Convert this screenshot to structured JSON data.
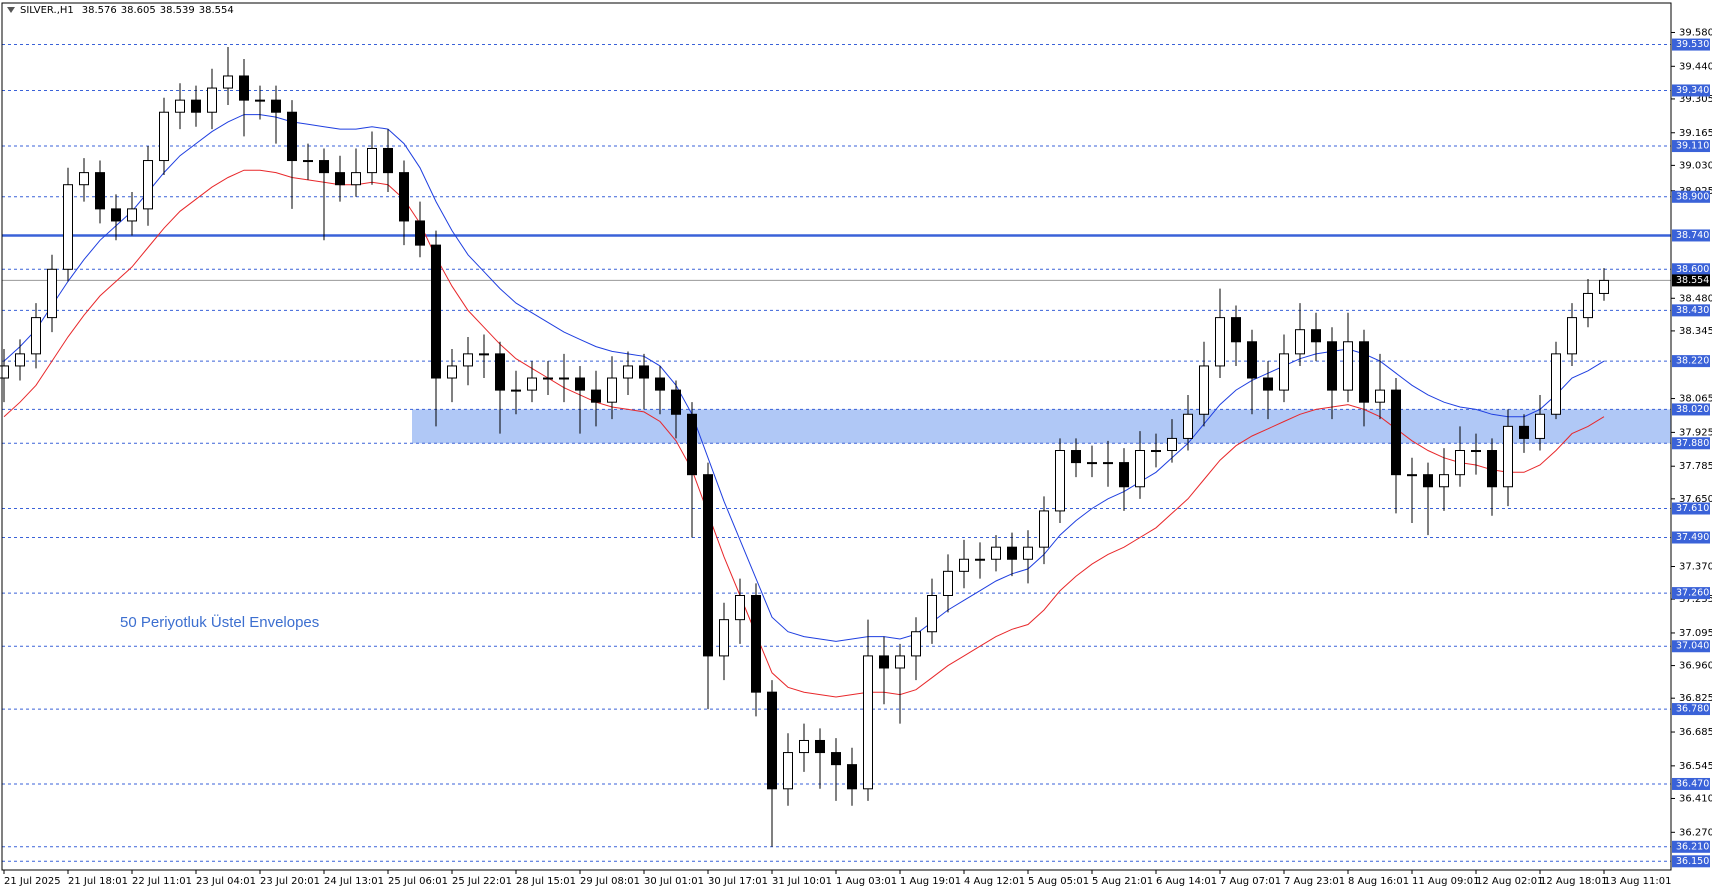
{
  "chart_data": {
    "type": "candlestick",
    "header": {
      "symbol": "SILVER.,H1",
      "ohlc": [
        38.576,
        38.605,
        38.539,
        38.554
      ]
    },
    "annotation": "50 Periyotluk Üstel Envelopes",
    "categories": [
      "21 Jul 2025",
      null,
      null,
      null,
      "21 Jul 18:01",
      null,
      null,
      null,
      "22 Jul 11:01",
      null,
      null,
      null,
      "23 Jul 04:01",
      null,
      null,
      null,
      "23 Jul 20:01",
      null,
      null,
      null,
      "24 Jul 13:01",
      null,
      null,
      null,
      "25 Jul 06:01",
      null,
      null,
      null,
      "25 Jul 22:01",
      null,
      null,
      null,
      "28 Jul 15:01",
      null,
      null,
      null,
      "29 Jul 08:01",
      null,
      null,
      null,
      "30 Jul 01:01",
      null,
      null,
      null,
      "30 Jul 17:01",
      null,
      null,
      null,
      "31 Jul 10:01",
      null,
      null,
      null,
      "1 Aug 03:01",
      null,
      null,
      null,
      "1 Aug 19:01",
      null,
      null,
      null,
      "4 Aug 12:01",
      null,
      null,
      null,
      "5 Aug 05:01",
      null,
      null,
      null,
      "5 Aug 21:01",
      null,
      null,
      null,
      "6 Aug 14:01",
      null,
      null,
      null,
      "7 Aug 07:01",
      null,
      null,
      null,
      "7 Aug 23:01",
      null,
      null,
      null,
      "8 Aug 16:01",
      null,
      null,
      null,
      "11 Aug 09:01",
      null,
      null,
      null,
      "12 Aug 02:01",
      null,
      null,
      null,
      "12 Aug 18:01",
      null,
      null,
      null,
      "13 Aug 11:01"
    ],
    "open": [
      38.15,
      38.2,
      38.25,
      38.4,
      38.6,
      38.95,
      39.0,
      38.85,
      38.8,
      38.85,
      39.05,
      39.25,
      39.3,
      39.25,
      39.35,
      39.4,
      39.3,
      39.3,
      39.25,
      39.05,
      39.05,
      39.0,
      38.95,
      39.0,
      39.1,
      39.0,
      38.8,
      38.7,
      38.15,
      38.2,
      38.25,
      38.25,
      38.1,
      38.1,
      38.15,
      38.15,
      38.15,
      38.1,
      38.05,
      38.15,
      38.2,
      38.15,
      38.1,
      38.0,
      37.75,
      37.0,
      37.15,
      37.25,
      36.85,
      36.45,
      36.6,
      36.65,
      36.6,
      36.55,
      36.45,
      37.0,
      36.95,
      37.0,
      37.1,
      37.25,
      37.35,
      37.4,
      37.4,
      37.45,
      37.4,
      37.45,
      37.6,
      37.85,
      37.8,
      37.8,
      37.8,
      37.7,
      37.85,
      37.85,
      37.9,
      38.0,
      38.2,
      38.4,
      38.3,
      38.15,
      38.1,
      38.25,
      38.35,
      38.3,
      38.1,
      38.3,
      38.05,
      38.1,
      37.75,
      37.75,
      37.7,
      37.75,
      37.85,
      37.85,
      37.7,
      37.95,
      37.9,
      38.0,
      38.25,
      38.4,
      38.5
    ],
    "high": [
      38.27,
      38.31,
      38.46,
      38.66,
      39.02,
      39.06,
      39.05,
      38.91,
      38.92,
      39.11,
      39.31,
      39.37,
      39.36,
      39.43,
      39.52,
      39.47,
      39.36,
      39.36,
      39.3,
      39.12,
      39.1,
      39.07,
      39.1,
      39.17,
      39.18,
      39.05,
      38.88,
      38.76,
      38.27,
      38.32,
      38.33,
      38.3,
      38.18,
      38.22,
      38.22,
      38.25,
      38.2,
      38.18,
      38.24,
      38.26,
      38.25,
      38.2,
      38.14,
      38.05,
      37.8,
      37.22,
      37.32,
      37.3,
      36.9,
      36.68,
      36.72,
      36.7,
      36.66,
      36.62,
      37.15,
      37.08,
      37.05,
      37.16,
      37.32,
      37.42,
      37.48,
      37.47,
      37.5,
      37.51,
      37.52,
      37.66,
      37.9,
      37.9,
      37.87,
      37.89,
      37.86,
      37.93,
      37.92,
      37.98,
      38.08,
      38.3,
      38.52,
      38.45,
      38.35,
      38.22,
      38.33,
      38.46,
      38.42,
      38.36,
      38.42,
      38.35,
      38.25,
      38.15,
      37.82,
      37.8,
      37.86,
      37.95,
      37.92,
      37.9,
      38.02,
      38.0,
      38.08,
      38.3,
      38.46,
      38.56,
      38.605
    ],
    "low": [
      38.05,
      38.14,
      38.19,
      38.34,
      38.55,
      38.88,
      38.79,
      38.72,
      38.74,
      38.78,
      38.99,
      39.18,
      39.19,
      39.18,
      39.28,
      39.15,
      39.22,
      39.12,
      38.85,
      38.97,
      38.72,
      38.88,
      38.9,
      38.95,
      38.92,
      38.7,
      38.65,
      37.95,
      38.05,
      38.12,
      38.15,
      37.92,
      38.0,
      38.05,
      38.08,
      38.05,
      37.92,
      37.95,
      37.98,
      38.08,
      38.02,
      38.0,
      37.9,
      37.49,
      36.78,
      36.9,
      37.05,
      36.75,
      36.21,
      36.38,
      36.52,
      36.45,
      36.4,
      36.38,
      36.4,
      36.8,
      36.72,
      36.9,
      37.05,
      37.18,
      37.28,
      37.32,
      37.35,
      37.33,
      37.3,
      37.38,
      37.55,
      37.74,
      37.74,
      37.7,
      37.6,
      37.65,
      37.78,
      37.8,
      37.85,
      37.95,
      38.15,
      38.2,
      38.0,
      37.98,
      38.05,
      38.2,
      38.22,
      37.98,
      38.05,
      37.95,
      37.98,
      37.59,
      37.55,
      37.5,
      37.6,
      37.7,
      37.75,
      37.58,
      37.62,
      37.84,
      37.85,
      37.98,
      38.2,
      38.36,
      38.47
    ],
    "close": [
      38.2,
      38.25,
      38.4,
      38.6,
      38.95,
      39.0,
      38.85,
      38.8,
      38.85,
      39.05,
      39.25,
      39.3,
      39.25,
      39.35,
      39.4,
      39.3,
      39.3,
      39.25,
      39.05,
      39.05,
      39.0,
      38.95,
      39.0,
      39.1,
      39.0,
      38.8,
      38.7,
      38.15,
      38.2,
      38.25,
      38.25,
      38.1,
      38.1,
      38.15,
      38.15,
      38.15,
      38.1,
      38.05,
      38.15,
      38.2,
      38.15,
      38.1,
      38.0,
      37.75,
      37.0,
      37.15,
      37.25,
      36.85,
      36.45,
      36.6,
      36.65,
      36.6,
      36.55,
      36.45,
      37.0,
      36.95,
      37.0,
      37.1,
      37.25,
      37.35,
      37.4,
      37.4,
      37.45,
      37.4,
      37.45,
      37.6,
      37.85,
      37.8,
      37.8,
      37.8,
      37.7,
      37.85,
      37.85,
      37.9,
      38.0,
      38.2,
      38.4,
      38.3,
      38.15,
      38.1,
      38.25,
      38.35,
      38.3,
      38.1,
      38.3,
      38.05,
      38.1,
      37.75,
      37.75,
      37.7,
      37.75,
      37.85,
      37.85,
      37.7,
      37.95,
      37.9,
      38.0,
      38.25,
      38.4,
      38.5,
      38.554
    ],
    "up_color": "#ffffff",
    "down_color": "#000000",
    "candle_stroke": "#000000",
    "envelopes": [
      {
        "color": "#1f3fe0",
        "values": [
          38.22,
          38.28,
          38.35,
          38.45,
          38.55,
          38.64,
          38.72,
          38.78,
          38.84,
          38.92,
          39.0,
          39.07,
          39.12,
          39.17,
          39.21,
          39.24,
          39.24,
          39.23,
          39.21,
          39.2,
          39.19,
          39.18,
          39.18,
          39.19,
          39.18,
          39.12,
          39.02,
          38.88,
          38.76,
          38.66,
          38.59,
          38.52,
          38.46,
          38.42,
          38.38,
          38.34,
          38.31,
          38.28,
          38.26,
          38.25,
          38.24,
          38.2,
          38.12,
          38.0,
          37.82,
          37.64,
          37.48,
          37.32,
          37.16,
          37.1,
          37.08,
          37.07,
          37.06,
          37.07,
          37.08,
          37.08,
          37.07,
          37.09,
          37.14,
          37.19,
          37.23,
          37.27,
          37.31,
          37.34,
          37.36,
          37.42,
          37.5,
          37.56,
          37.61,
          37.65,
          37.68,
          37.72,
          37.76,
          37.82,
          37.88,
          37.96,
          38.04,
          38.1,
          38.14,
          38.17,
          38.2,
          38.23,
          38.25,
          38.26,
          38.27,
          38.25,
          38.22,
          38.17,
          38.12,
          38.08,
          38.05,
          38.03,
          38.02,
          38.0,
          37.99,
          37.99,
          38.02,
          38.08,
          38.15,
          38.18,
          38.22
        ]
      },
      {
        "color": "#e8282b",
        "values": [
          37.99,
          38.05,
          38.12,
          38.22,
          38.32,
          38.41,
          38.49,
          38.55,
          38.61,
          38.69,
          38.77,
          38.84,
          38.89,
          38.94,
          38.98,
          39.01,
          39.01,
          39.0,
          38.98,
          38.97,
          38.96,
          38.95,
          38.95,
          38.96,
          38.95,
          38.89,
          38.79,
          38.65,
          38.53,
          38.43,
          38.36,
          38.29,
          38.23,
          38.19,
          38.15,
          38.11,
          38.08,
          38.05,
          38.03,
          38.02,
          38.01,
          37.97,
          37.89,
          37.77,
          37.59,
          37.41,
          37.25,
          37.09,
          36.93,
          36.87,
          36.85,
          36.84,
          36.83,
          36.84,
          36.85,
          36.85,
          36.84,
          36.86,
          36.91,
          36.96,
          37.0,
          37.04,
          37.08,
          37.11,
          37.13,
          37.19,
          37.27,
          37.33,
          37.38,
          37.42,
          37.45,
          37.49,
          37.53,
          37.59,
          37.65,
          37.73,
          37.81,
          37.87,
          37.91,
          37.94,
          37.97,
          38.0,
          38.02,
          38.03,
          38.04,
          38.02,
          37.99,
          37.94,
          37.89,
          37.85,
          37.82,
          37.8,
          37.79,
          37.77,
          37.76,
          37.76,
          37.79,
          37.85,
          37.92,
          37.95,
          37.99
        ]
      }
    ],
    "zone": {
      "from": 37.88,
      "to": 38.02,
      "start_category": 26,
      "color": "#b0c8f6"
    },
    "level_color": "#3a62d8",
    "levels": [
      {
        "value": 39.53,
        "label": "39.530",
        "style": "dashed"
      },
      {
        "value": 39.34,
        "label": "39.340",
        "style": "dashed"
      },
      {
        "value": 39.11,
        "label": "39.110",
        "style": "dashed"
      },
      {
        "value": 38.9,
        "label": "38.900",
        "style": "dashed"
      },
      {
        "value": 38.74,
        "label": "38.740",
        "style": "solid"
      },
      {
        "value": 38.6,
        "label": "38.600",
        "style": "dashed"
      },
      {
        "value": 38.43,
        "label": "38.430",
        "style": "dashed"
      },
      {
        "value": 38.22,
        "label": "38.220",
        "style": "dashed"
      },
      {
        "value": 38.02,
        "label": "38.020",
        "style": "dashed"
      },
      {
        "value": 37.88,
        "label": "37.880",
        "style": "dashed"
      },
      {
        "value": 37.61,
        "label": "37.610",
        "style": "dashed"
      },
      {
        "value": 37.49,
        "label": "37.490",
        "style": "dashed"
      },
      {
        "value": 37.26,
        "label": "37.260",
        "style": "dashed"
      },
      {
        "value": 37.04,
        "label": "37.040",
        "style": "dashed"
      },
      {
        "value": 36.78,
        "label": "36.780",
        "style": "dashed"
      },
      {
        "value": 36.47,
        "label": "36.470",
        "style": "dashed"
      },
      {
        "value": 36.21,
        "label": "36.210",
        "style": "dashed"
      },
      {
        "value": 36.15,
        "label": "36.150",
        "style": "dashed"
      }
    ],
    "price_line": {
      "value": 38.554,
      "color": "#9a9a9a"
    },
    "ylim": [
      36.114,
      39.702
    ],
    "yticks": [
      {
        "value": 39.58,
        "label": "39.580"
      },
      {
        "value": 39.44,
        "label": "39.440"
      },
      39.305,
      39.165,
      {
        "value": 39.03,
        "label": "39.030"
      },
      {
        "value": 38.48,
        "label": "38.480"
      },
      38.345,
      38.065,
      38.925,
      37.925,
      37.785,
      {
        "value": 37.65,
        "label": "37.650"
      },
      {
        "value": 37.37,
        "label": "37.370"
      },
      37.235,
      37.095,
      {
        "value": 36.96,
        "label": "36.960"
      },
      36.825,
      36.685,
      36.545,
      {
        "value": 36.41,
        "label": "36.410"
      },
      {
        "value": 36.27,
        "label": "36.270"
      }
    ],
    "grid": false
  }
}
